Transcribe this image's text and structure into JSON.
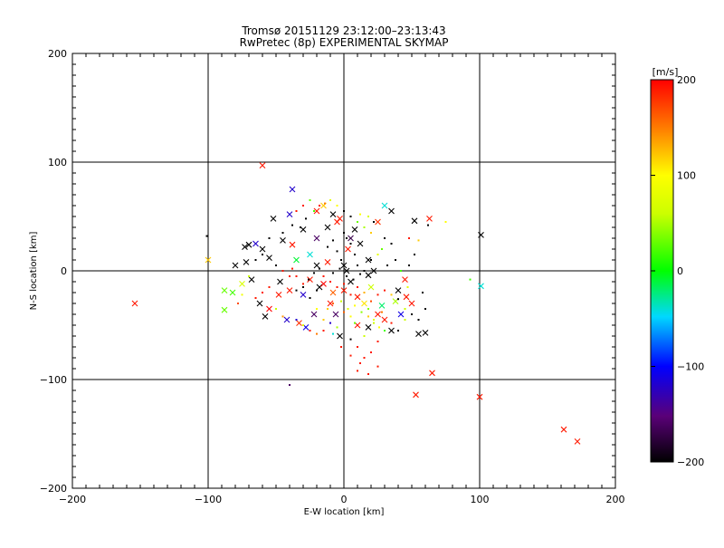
{
  "chart_data": {
    "type": "scatter",
    "title": "Tromsø 20151129 23:12:00–23:13:43",
    "subtitle": "RwPretec (8p) EXPERIMENTAL SKYMAP",
    "xlabel": "E-W location [km]",
    "ylabel": "N-S location [km]",
    "xlim": [
      -200,
      200
    ],
    "ylim": [
      -200,
      200
    ],
    "xticks": [
      "−200",
      "−100",
      "0",
      "100",
      "200"
    ],
    "yticks": [
      "200",
      "100",
      "0",
      "−100",
      "−200"
    ],
    "grid": true,
    "colorbar": {
      "label": "[m/s]",
      "range": [
        -200,
        200
      ],
      "ticks": [
        "200",
        "100",
        "0",
        "−100",
        "−200"
      ]
    },
    "series": [
      {
        "name": "crosses",
        "marker": "x",
        "points": [
          [
            -60,
            97,
            190
          ],
          [
            -154,
            -30,
            190
          ],
          [
            -100,
            10,
            120
          ],
          [
            53,
            -114,
            190
          ],
          [
            65,
            -94,
            190
          ],
          [
            100,
            -116,
            190
          ],
          [
            162,
            -146,
            190
          ],
          [
            172,
            -157,
            190
          ],
          [
            101,
            33,
            -200
          ],
          [
            101,
            -14,
            -40
          ],
          [
            -38,
            75,
            -120
          ],
          [
            -88,
            -36,
            30
          ],
          [
            -82,
            -20,
            20
          ],
          [
            -75,
            -12,
            70
          ],
          [
            -73,
            22,
            -200
          ],
          [
            -70,
            24,
            -200
          ],
          [
            -65,
            25,
            -120
          ],
          [
            -60,
            20,
            -200
          ],
          [
            -58,
            -42,
            -200
          ],
          [
            -55,
            -35,
            200
          ],
          [
            -42,
            -45,
            -120
          ],
          [
            -33,
            -48,
            180
          ],
          [
            -28,
            -52,
            -110
          ],
          [
            -22,
            -40,
            -160
          ],
          [
            -10,
            -30,
            190
          ],
          [
            -5,
            45,
            190
          ],
          [
            -12,
            40,
            -200
          ],
          [
            5,
            30,
            -170
          ],
          [
            12,
            25,
            -200
          ],
          [
            -25,
            15,
            -40
          ],
          [
            -35,
            10,
            -10
          ],
          [
            -47,
            -10,
            -200
          ],
          [
            -30,
            -22,
            -120
          ],
          [
            -18,
            -15,
            -200
          ],
          [
            -15,
            -12,
            200
          ],
          [
            -8,
            -20,
            160
          ],
          [
            0,
            -18,
            190
          ],
          [
            5,
            -10,
            -200
          ],
          [
            10,
            -24,
            190
          ],
          [
            15,
            -30,
            110
          ],
          [
            20,
            -15,
            60
          ],
          [
            28,
            -32,
            -20
          ],
          [
            30,
            -45,
            190
          ],
          [
            35,
            -55,
            -200
          ],
          [
            42,
            -40,
            -110
          ],
          [
            50,
            -30,
            190
          ],
          [
            55,
            -58,
            -200
          ],
          [
            60,
            -57,
            -200
          ],
          [
            52,
            46,
            -200
          ],
          [
            63,
            48,
            190
          ],
          [
            25,
            45,
            180
          ],
          [
            30,
            60,
            -40
          ],
          [
            35,
            55,
            -200
          ],
          [
            -52,
            48,
            -200
          ],
          [
            -40,
            52,
            -120
          ],
          [
            -20,
            55,
            190
          ],
          [
            -15,
            60,
            120
          ],
          [
            -8,
            52,
            -200
          ],
          [
            -3,
            48,
            190
          ],
          [
            8,
            38,
            -200
          ],
          [
            -45,
            28,
            -200
          ],
          [
            -72,
            8,
            -200
          ],
          [
            -80,
            5,
            -200
          ],
          [
            -68,
            -8,
            -200
          ],
          [
            -62,
            -30,
            -200
          ],
          [
            -48,
            -22,
            190
          ],
          [
            -40,
            -18,
            190
          ],
          [
            -25,
            -8,
            190
          ],
          [
            -20,
            5,
            -200
          ],
          [
            -12,
            8,
            190
          ],
          [
            0,
            5,
            -200
          ],
          [
            3,
            20,
            190
          ],
          [
            18,
            10,
            -200
          ],
          [
            22,
            0,
            -200
          ],
          [
            18,
            -4,
            -200
          ],
          [
            40,
            -18,
            -200
          ],
          [
            46,
            -24,
            190
          ],
          [
            38,
            -28,
            50
          ],
          [
            -3,
            -60,
            -200
          ],
          [
            10,
            -50,
            190
          ],
          [
            18,
            -52,
            -200
          ],
          [
            25,
            -40,
            190
          ],
          [
            -30,
            38,
            -200
          ],
          [
            -38,
            24,
            190
          ],
          [
            -55,
            12,
            -200
          ],
          [
            -88,
            -18,
            30
          ],
          [
            -20,
            30,
            -160
          ],
          [
            45,
            -8,
            190
          ],
          [
            -6,
            -40,
            -160
          ],
          [
            2,
            0,
            -200
          ]
        ]
      },
      {
        "name": "dots",
        "marker": "dot",
        "points": [
          [
            -101,
            32,
            -200
          ],
          [
            93,
            -8,
            20
          ],
          [
            75,
            45,
            100
          ],
          [
            62,
            42,
            -200
          ],
          [
            47,
            -15,
            80
          ],
          [
            -40,
            -105,
            -160
          ],
          [
            5,
            -63,
            -200
          ],
          [
            10,
            -70,
            190
          ],
          [
            15,
            -80,
            190
          ],
          [
            20,
            -75,
            190
          ],
          [
            25,
            -65,
            190
          ],
          [
            12,
            -85,
            190
          ],
          [
            15,
            -60,
            60
          ],
          [
            18,
            -42,
            120
          ],
          [
            22,
            -45,
            80
          ],
          [
            28,
            -38,
            150
          ],
          [
            8,
            -48,
            30
          ],
          [
            5,
            -42,
            100
          ],
          [
            0,
            -38,
            160
          ],
          [
            -5,
            -52,
            50
          ],
          [
            -10,
            -48,
            -120
          ],
          [
            -15,
            -45,
            120
          ],
          [
            -20,
            -35,
            100
          ],
          [
            -25,
            -25,
            -200
          ],
          [
            -30,
            -12,
            190
          ],
          [
            -35,
            -5,
            190
          ],
          [
            -38,
            2,
            190
          ],
          [
            -20,
            -18,
            -200
          ],
          [
            -15,
            -5,
            190
          ],
          [
            -10,
            -10,
            190
          ],
          [
            -5,
            -15,
            190
          ],
          [
            0,
            -12,
            190
          ],
          [
            5,
            -22,
            190
          ],
          [
            10,
            -15,
            190
          ],
          [
            15,
            -20,
            130
          ],
          [
            20,
            -28,
            170
          ],
          [
            25,
            -22,
            190
          ],
          [
            30,
            -18,
            190
          ],
          [
            35,
            -22,
            120
          ],
          [
            40,
            -26,
            -200
          ],
          [
            45,
            -35,
            60
          ],
          [
            50,
            -40,
            -200
          ],
          [
            0,
            35,
            -200
          ],
          [
            2,
            30,
            -200
          ],
          [
            5,
            25,
            -200
          ],
          [
            8,
            15,
            -200
          ],
          [
            -2,
            10,
            -200
          ],
          [
            -5,
            18,
            -200
          ],
          [
            -8,
            28,
            -200
          ],
          [
            -12,
            22,
            -200
          ],
          [
            10,
            5,
            -200
          ],
          [
            15,
            0,
            -200
          ],
          [
            20,
            10,
            -200
          ],
          [
            25,
            15,
            80
          ],
          [
            28,
            20,
            30
          ],
          [
            32,
            5,
            -200
          ],
          [
            -10,
            65,
            80
          ],
          [
            -14,
            62,
            150
          ],
          [
            -18,
            60,
            190
          ],
          [
            -22,
            55,
            20
          ],
          [
            -5,
            60,
            100
          ],
          [
            0,
            55,
            -200
          ],
          [
            5,
            50,
            -200
          ],
          [
            10,
            45,
            30
          ],
          [
            15,
            40,
            50
          ],
          [
            20,
            35,
            120
          ],
          [
            -28,
            48,
            -200
          ],
          [
            -32,
            40,
            -200
          ],
          [
            -38,
            42,
            -200
          ],
          [
            -45,
            35,
            -200
          ],
          [
            -55,
            30,
            -200
          ],
          [
            -60,
            15,
            -200
          ],
          [
            -65,
            10,
            -200
          ],
          [
            -50,
            5,
            -200
          ],
          [
            -45,
            0,
            190
          ],
          [
            -40,
            -5,
            190
          ],
          [
            -55,
            -15,
            190
          ],
          [
            -60,
            -20,
            190
          ],
          [
            -65,
            -25,
            190
          ],
          [
            -50,
            -35,
            60
          ],
          [
            -45,
            -42,
            140
          ],
          [
            -35,
            -45,
            -120
          ],
          [
            -30,
            -50,
            80
          ],
          [
            -25,
            -55,
            190
          ],
          [
            -20,
            -58,
            150
          ],
          [
            -15,
            -55,
            190
          ],
          [
            -8,
            -58,
            -40
          ],
          [
            35,
            -48,
            190
          ],
          [
            40,
            -55,
            -200
          ],
          [
            45,
            -45,
            60
          ],
          [
            58,
            -20,
            -200
          ],
          [
            60,
            -35,
            -200
          ],
          [
            55,
            -45,
            -200
          ],
          [
            -70,
            -5,
            60
          ],
          [
            -75,
            -22,
            90
          ],
          [
            -78,
            -30,
            170
          ],
          [
            10,
            -92,
            190
          ],
          [
            18,
            -95,
            190
          ],
          [
            25,
            -88,
            190
          ],
          [
            5,
            -78,
            190
          ],
          [
            -2,
            -70,
            190
          ],
          [
            12,
            52,
            100
          ],
          [
            18,
            50,
            70
          ],
          [
            22,
            45,
            -200
          ],
          [
            -25,
            65,
            30
          ],
          [
            -30,
            60,
            190
          ],
          [
            -35,
            55,
            190
          ],
          [
            30,
            30,
            -200
          ],
          [
            35,
            25,
            -200
          ],
          [
            38,
            10,
            -200
          ],
          [
            42,
            0,
            20
          ],
          [
            48,
            5,
            -200
          ],
          [
            52,
            15,
            -200
          ],
          [
            55,
            28,
            120
          ],
          [
            48,
            30,
            190
          ],
          [
            -8,
            -2,
            -200
          ],
          [
            -3,
            2,
            -200
          ],
          [
            2,
            -5,
            -200
          ],
          [
            7,
            -8,
            -200
          ],
          [
            12,
            -3,
            -200
          ],
          [
            -18,
            2,
            -200
          ],
          [
            -22,
            -2,
            -200
          ],
          [
            -26,
            -8,
            -200
          ],
          [
            -30,
            -15,
            -200
          ],
          [
            -35,
            -18,
            -200
          ],
          [
            18,
            -35,
            40
          ],
          [
            22,
            -48,
            60
          ],
          [
            26,
            -52,
            100
          ],
          [
            30,
            -55,
            20
          ],
          [
            -12,
            -35,
            120
          ],
          [
            -8,
            -30,
            160
          ],
          [
            -2,
            -28,
            60
          ],
          [
            3,
            -35,
            80
          ],
          [
            8,
            -32,
            100
          ],
          [
            13,
            -38,
            40
          ]
        ]
      }
    ]
  }
}
